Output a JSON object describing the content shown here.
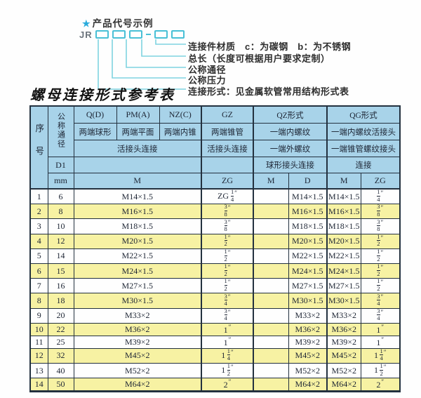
{
  "diagram": {
    "star": "★",
    "title": "产品代号示例",
    "prefix": "JR",
    "labels": [
      "连接件材质　c：为碳钢　b：为不锈钢",
      "总长（长度可根据用户要求定制）",
      "公称通径",
      "公称压力",
      "连接形式：见金属软管常用结构形式表"
    ],
    "line_color": "#7fd4e0",
    "box_color": "#49c0d6"
  },
  "table_title": "螺母连接形式参考表",
  "table": {
    "header": {
      "serial": "序号",
      "dn": "公称通径",
      "d1": "D1",
      "mm": "mm",
      "q": "Q(D)",
      "pm": "PM(A)",
      "nz": "NZ(C)",
      "gz": "GZ",
      "qz": "QZ形式",
      "qg": "QG形式",
      "q_sub": "两端球形",
      "pm_sub": "两端平面",
      "nz_sub": "两端内锥",
      "gz_sub": "两端锥管",
      "qz_sub1": "一端内螺纹",
      "qg_sub1": "一端内螺纹活接头",
      "union_conn": "活接头连接",
      "gz_conn": "活接头连接",
      "qz_sub2": "一端外螺纹",
      "qg_sub2": "一端锥管螺纹接头",
      "qz_conn": "球形接头连接",
      "qg_conn": "连接",
      "m": "M",
      "zg": "ZG",
      "qz_m": "M",
      "qz_d": "D",
      "qg_m": "M",
      "qg_zg": "ZG"
    },
    "colors": {
      "header_bg": "#a8d3e9",
      "alt_row_bg": "#f7f2a3",
      "border": "#23313f"
    },
    "rows": [
      {
        "no": "1",
        "dn": "6",
        "m": "M14×1.5",
        "gz": "ZG 1/4\"",
        "qz_m": "",
        "qz_d": "M14×1.5",
        "qg_m": "M14×1.5",
        "qg_zg": "1/4\""
      },
      {
        "no": "2",
        "dn": "8",
        "m": "M16×1.5",
        "gz": "3/8\"",
        "qz_m": "",
        "qz_d": "M16×1.5",
        "qg_m": "M16×1.5",
        "qg_zg": "3/8\""
      },
      {
        "no": "3",
        "dn": "10",
        "m": "M18×1.5",
        "gz": "3/8\"",
        "qz_m": "",
        "qz_d": "M18×1.5",
        "qg_m": "M18×1.5",
        "qg_zg": "3/8\""
      },
      {
        "no": "4",
        "dn": "12",
        "m": "M20×1.5",
        "gz": "1/2\"",
        "qz_m": "",
        "qz_d": "M20×1.5",
        "qg_m": "M20×1.5",
        "qg_zg": "1/2\""
      },
      {
        "no": "5",
        "dn": "14",
        "m": "M22×1.5",
        "gz": "1/2\"",
        "qz_m": "",
        "qz_d": "M22×1.5",
        "qg_m": "M22×1.5",
        "qg_zg": "1/2\""
      },
      {
        "no": "6",
        "dn": "15",
        "m": "M24×1.5",
        "gz": "1/2\"",
        "qz_m": "",
        "qz_d": "M24×1.5",
        "qg_m": "M24×1.5",
        "qg_zg": "1/2\""
      },
      {
        "no": "7",
        "dn": "16",
        "m": "M27×1.5",
        "gz": "1/2\"",
        "qz_m": "",
        "qz_d": "M27×1.5",
        "qg_m": "M27×1.5",
        "qg_zg": "1/2\""
      },
      {
        "no": "8",
        "dn": "18",
        "m": "M30×1.5",
        "gz": "3/4\"",
        "qz_m": "",
        "qz_d": "M30×1.5",
        "qg_m": "M30×1.5",
        "qg_zg": "3/4\""
      },
      {
        "no": "9",
        "dn": "20",
        "m": "M33×2",
        "gz": "3/4\"",
        "qz_m": "",
        "qz_d": "M33×2",
        "qg_m": "M33×2",
        "qg_zg": "3/4\""
      },
      {
        "no": "10",
        "dn": "22",
        "m": "M36×2",
        "gz": "1\"",
        "qz_m": "",
        "qz_d": "M36×2",
        "qg_m": "M36×2",
        "qg_zg": "1\""
      },
      {
        "no": "11",
        "dn": "25",
        "m": "M39×2",
        "gz": "1\"",
        "qz_m": "",
        "qz_d": "M39×2",
        "qg_m": "M39×2",
        "qg_zg": "1\""
      },
      {
        "no": "12",
        "dn": "32",
        "m": "M45×2",
        "gz": "1 1/4\"",
        "qz_m": "",
        "qz_d": "M45×2",
        "qg_m": "M45×2",
        "qg_zg": "1 1/4\""
      },
      {
        "no": "13",
        "dn": "40",
        "m": "M52×2",
        "gz": "1 1/2\"",
        "qz_m": "",
        "qz_d": "M52×2",
        "qg_m": "M52×2",
        "qg_zg": "1 1/2\""
      },
      {
        "no": "14",
        "dn": "50",
        "m": "M64×2",
        "gz": "2\"",
        "qz_m": "",
        "qz_d": "M64×2",
        "qg_m": "M64×2",
        "qg_zg": "2\""
      }
    ]
  }
}
